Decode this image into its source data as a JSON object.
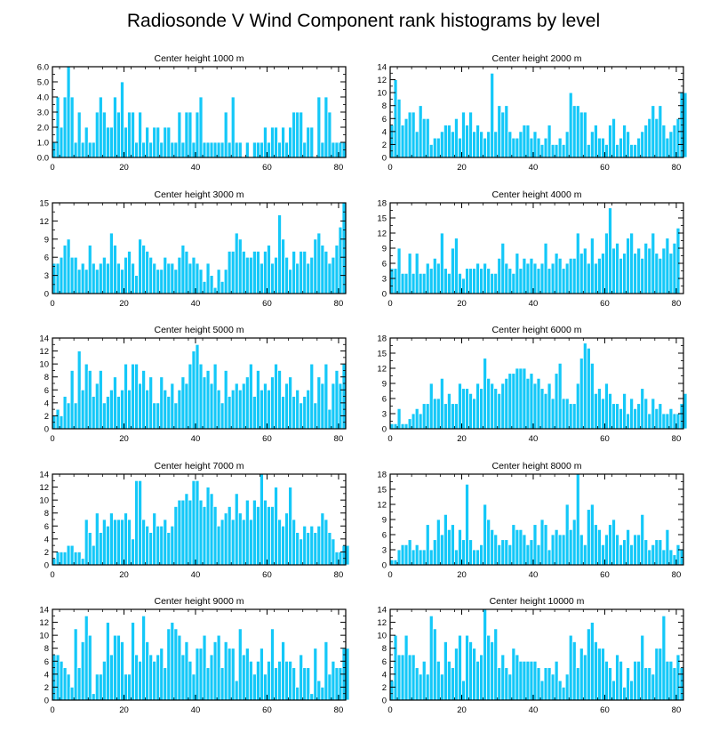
{
  "figure": {
    "title": "Radiosonde V Wind Component rank histograms by level",
    "bar_color": "#14c8f8",
    "bar_edge_color": "#ffffff",
    "axis_color": "#000000"
  },
  "chart_data": [
    {
      "type": "bar",
      "title": "Center height 1000 m",
      "x_start": 0,
      "xlim": [
        0,
        82
      ],
      "ylim": [
        0,
        6
      ],
      "xticks": [
        0,
        20,
        40,
        60,
        80
      ],
      "xtick_labels": [
        "0",
        "20",
        "40",
        "60",
        "80"
      ],
      "yticks": [
        0,
        1,
        2,
        3,
        4,
        5,
        6
      ],
      "ytick_labels": [
        "0.0",
        "1.0",
        "2.0",
        "3.0",
        "4.0",
        "5.0",
        "6.0"
      ],
      "values": [
        1,
        4,
        2,
        4,
        6,
        4,
        1,
        3,
        1,
        2,
        1,
        1,
        3,
        4,
        3,
        2,
        2,
        4,
        3,
        5,
        2,
        3,
        3,
        1,
        3,
        1,
        2,
        1,
        2,
        2,
        1,
        2,
        2,
        1,
        1,
        3,
        1,
        3,
        3,
        1,
        3,
        4,
        1,
        1,
        1,
        1,
        1,
        1,
        3,
        1,
        4,
        1,
        1,
        0,
        1,
        0,
        1,
        1,
        1,
        2,
        1,
        2,
        2,
        1,
        2,
        1,
        2,
        3,
        3,
        3,
        1,
        2,
        2,
        0,
        4,
        1,
        4,
        3,
        1,
        1,
        1,
        1
      ]
    },
    {
      "type": "bar",
      "title": "Center height 2000 m",
      "x_start": 0,
      "xlim": [
        0,
        82
      ],
      "ylim": [
        0,
        14
      ],
      "xticks": [
        0,
        20,
        40,
        60,
        80
      ],
      "xtick_labels": [
        "0",
        "20",
        "40",
        "60",
        "80"
      ],
      "yticks": [
        0,
        2,
        4,
        6,
        8,
        10,
        12,
        14
      ],
      "ytick_labels": [
        "0",
        "2",
        "4",
        "6",
        "8",
        "10",
        "12",
        "14"
      ],
      "values": [
        5,
        12,
        9,
        5,
        6,
        7,
        7,
        4,
        8,
        6,
        6,
        2,
        3,
        3,
        4,
        5,
        5,
        4,
        6,
        3,
        7,
        5,
        7,
        4,
        5,
        4,
        3,
        4,
        13,
        4,
        8,
        7,
        8,
        4,
        3,
        3,
        4,
        5,
        5,
        3,
        4,
        3,
        2,
        3,
        5,
        2,
        2,
        3,
        2,
        4,
        10,
        8,
        8,
        7,
        7,
        2,
        4,
        5,
        3,
        3,
        2,
        5,
        6,
        2,
        3,
        5,
        4,
        2,
        2,
        3,
        4,
        5,
        6,
        8,
        6,
        8,
        5,
        3,
        4,
        5,
        6,
        10,
        10
      ]
    },
    {
      "type": "bar",
      "title": "Center height 3000 m",
      "x_start": 0,
      "xlim": [
        0,
        82
      ],
      "ylim": [
        0,
        15
      ],
      "xticks": [
        0,
        20,
        40,
        60,
        80
      ],
      "xtick_labels": [
        "0",
        "20",
        "40",
        "60",
        "80"
      ],
      "yticks": [
        0,
        3,
        6,
        9,
        12,
        15
      ],
      "ytick_labels": [
        "0",
        "3",
        "6",
        "9",
        "12",
        "15"
      ],
      "values": [
        5,
        5,
        6,
        8,
        9,
        6,
        6,
        4,
        5,
        4,
        8,
        5,
        4,
        5,
        6,
        5,
        10,
        8,
        5,
        4,
        6,
        7,
        5,
        3,
        9,
        8,
        7,
        6,
        5,
        4,
        4,
        6,
        5,
        5,
        4,
        6,
        8,
        7,
        5,
        6,
        5,
        4,
        2,
        5,
        3,
        1,
        4,
        2,
        4,
        7,
        7,
        10,
        9,
        7,
        6,
        6,
        7,
        7,
        5,
        7,
        8,
        5,
        6,
        13,
        9,
        6,
        4,
        7,
        5,
        7,
        7,
        5,
        6,
        9,
        10,
        8,
        7,
        5,
        6,
        8,
        11,
        15
      ]
    },
    {
      "type": "bar",
      "title": "Center height 4000 m",
      "x_start": 0,
      "xlim": [
        0,
        82
      ],
      "ylim": [
        0,
        18
      ],
      "xticks": [
        0,
        20,
        40,
        60,
        80
      ],
      "xtick_labels": [
        "0",
        "20",
        "40",
        "60",
        "80"
      ],
      "yticks": [
        0,
        3,
        6,
        9,
        12,
        15,
        18
      ],
      "ytick_labels": [
        "0",
        "3",
        "6",
        "9",
        "12",
        "15",
        "18"
      ],
      "values": [
        5,
        5,
        9,
        4,
        4,
        8,
        4,
        8,
        4,
        4,
        6,
        5,
        7,
        6,
        12,
        5,
        4,
        9,
        11,
        4,
        3,
        5,
        5,
        5,
        6,
        5,
        6,
        5,
        4,
        4,
        7,
        10,
        6,
        5,
        4,
        8,
        5,
        7,
        6,
        7,
        6,
        5,
        6,
        10,
        5,
        6,
        8,
        7,
        5,
        6,
        7,
        7,
        12,
        8,
        9,
        6,
        11,
        6,
        7,
        8,
        12,
        17,
        9,
        10,
        7,
        8,
        11,
        12,
        8,
        9,
        7,
        10,
        9,
        12,
        8,
        7,
        9,
        11,
        8,
        10,
        13
      ]
    },
    {
      "type": "bar",
      "title": "Center height 5000 m",
      "x_start": 0,
      "xlim": [
        0,
        82
      ],
      "ylim": [
        0,
        14
      ],
      "xticks": [
        0,
        20,
        40,
        60,
        80
      ],
      "xtick_labels": [
        "0",
        "20",
        "40",
        "60",
        "80"
      ],
      "yticks": [
        0,
        2,
        4,
        6,
        8,
        10,
        12,
        14
      ],
      "ytick_labels": [
        "0",
        "2",
        "4",
        "6",
        "8",
        "10",
        "12",
        "14"
      ],
      "values": [
        2,
        3,
        2,
        5,
        4,
        9,
        4,
        12,
        6,
        10,
        9,
        5,
        7,
        9,
        4,
        5,
        6,
        8,
        5,
        6,
        10,
        6,
        10,
        10,
        7,
        9,
        6,
        8,
        4,
        4,
        8,
        6,
        5,
        7,
        4,
        6,
        8,
        7,
        10,
        12,
        13,
        10,
        8,
        9,
        7,
        10,
        6,
        4,
        9,
        5,
        6,
        7,
        6,
        7,
        8,
        10,
        5,
        9,
        6,
        7,
        6,
        8,
        10,
        9,
        5,
        7,
        8,
        5,
        6,
        4,
        5,
        6,
        10,
        4,
        8,
        7,
        10,
        3,
        7,
        9,
        7,
        10
      ]
    },
    {
      "type": "bar",
      "title": "Center height 6000 m",
      "x_start": 0,
      "xlim": [
        0,
        82
      ],
      "ylim": [
        0,
        18
      ],
      "xticks": [
        0,
        20,
        40,
        60,
        80
      ],
      "xtick_labels": [
        "0",
        "20",
        "40",
        "60",
        "80"
      ],
      "yticks": [
        0,
        3,
        6,
        9,
        12,
        15,
        18
      ],
      "ytick_labels": [
        "0",
        "3",
        "6",
        "9",
        "12",
        "15",
        "18"
      ],
      "values": [
        1,
        1,
        4,
        1,
        1,
        2,
        3,
        4,
        3,
        5,
        5,
        9,
        6,
        6,
        10,
        5,
        7,
        5,
        5,
        9,
        8,
        8,
        7,
        6,
        9,
        8,
        14,
        10,
        9,
        8,
        7,
        9,
        10,
        11,
        11,
        12,
        12,
        12,
        10,
        11,
        9,
        10,
        8,
        7,
        9,
        6,
        11,
        13,
        6,
        6,
        5,
        5,
        9,
        14,
        17,
        16,
        13,
        7,
        8,
        6,
        9,
        7,
        5,
        5,
        4,
        7,
        3,
        6,
        4,
        5,
        8,
        6,
        3,
        6,
        4,
        5,
        3,
        3,
        4,
        3,
        3,
        5,
        7
      ]
    },
    {
      "type": "bar",
      "title": "Center height 7000 m",
      "x_start": 0,
      "xlim": [
        0,
        82
      ],
      "ylim": [
        0,
        14
      ],
      "xticks": [
        0,
        20,
        40,
        60,
        80
      ],
      "xtick_labels": [
        "0",
        "20",
        "40",
        "60",
        "80"
      ],
      "yticks": [
        0,
        2,
        4,
        6,
        8,
        10,
        12,
        14
      ],
      "ytick_labels": [
        "0",
        "2",
        "4",
        "6",
        "8",
        "10",
        "12",
        "14"
      ],
      "values": [
        1,
        2,
        2,
        2,
        3,
        3,
        2,
        2,
        1,
        7,
        5,
        3,
        8,
        5,
        7,
        6,
        8,
        7,
        7,
        7,
        8,
        7,
        4,
        13,
        13,
        7,
        6,
        5,
        8,
        6,
        6,
        7,
        5,
        6,
        9,
        10,
        10,
        11,
        10,
        13,
        13,
        10,
        9,
        12,
        11,
        9,
        6,
        7,
        8,
        9,
        7,
        11,
        8,
        7,
        10,
        7,
        10,
        9,
        14,
        10,
        9,
        9,
        12,
        7,
        6,
        8,
        12,
        7,
        5,
        4,
        6,
        5,
        6,
        5,
        6,
        8,
        7,
        5,
        4,
        2,
        2,
        3,
        3
      ]
    },
    {
      "type": "bar",
      "title": "Center height 8000 m",
      "x_start": 0,
      "xlim": [
        0,
        82
      ],
      "ylim": [
        0,
        18
      ],
      "xticks": [
        0,
        20,
        40,
        60,
        80
      ],
      "xtick_labels": [
        "0",
        "20",
        "40",
        "60",
        "80"
      ],
      "yticks": [
        0,
        3,
        6,
        9,
        12,
        15,
        18
      ],
      "ytick_labels": [
        "0",
        "3",
        "6",
        "9",
        "12",
        "15",
        "18"
      ],
      "values": [
        1,
        1,
        3,
        4,
        4,
        5,
        3,
        4,
        3,
        3,
        8,
        3,
        5,
        9,
        6,
        10,
        7,
        8,
        3,
        7,
        5,
        16,
        5,
        3,
        3,
        4,
        12,
        9,
        7,
        6,
        4,
        5,
        5,
        4,
        8,
        7,
        7,
        6,
        4,
        5,
        8,
        4,
        9,
        8,
        3,
        6,
        7,
        6,
        6,
        12,
        7,
        9,
        18,
        6,
        4,
        11,
        12,
        8,
        7,
        4,
        6,
        8,
        9,
        6,
        4,
        5,
        7,
        4,
        6,
        6,
        10,
        5,
        3,
        4,
        5,
        5,
        3,
        7,
        3,
        2,
        4,
        3
      ]
    },
    {
      "type": "bar",
      "title": "Center height 9000 m",
      "x_start": 0,
      "xlim": [
        0,
        82
      ],
      "ylim": [
        0,
        14
      ],
      "xticks": [
        0,
        20,
        40,
        60,
        80
      ],
      "xtick_labels": [
        "0",
        "20",
        "40",
        "60",
        "80"
      ],
      "yticks": [
        0,
        2,
        4,
        6,
        8,
        10,
        12,
        14
      ],
      "ytick_labels": [
        "0",
        "2",
        "4",
        "6",
        "8",
        "10",
        "12",
        "14"
      ],
      "values": [
        7,
        7,
        6,
        5,
        4,
        2,
        11,
        5,
        9,
        13,
        10,
        1,
        4,
        4,
        6,
        12,
        7,
        10,
        10,
        9,
        4,
        4,
        12,
        7,
        6,
        13,
        9,
        7,
        6,
        7,
        8,
        5,
        11,
        12,
        11,
        10,
        7,
        9,
        6,
        4,
        8,
        8,
        10,
        5,
        7,
        9,
        10,
        5,
        9,
        8,
        8,
        3,
        11,
        7,
        8,
        6,
        4,
        6,
        8,
        4,
        6,
        11,
        5,
        6,
        9,
        6,
        6,
        5,
        2,
        7,
        5,
        5,
        1,
        8,
        3,
        2,
        9,
        4,
        6,
        5,
        5,
        8,
        8
      ]
    },
    {
      "type": "bar",
      "title": "Center height 10000 m",
      "x_start": 0,
      "xlim": [
        0,
        82
      ],
      "ylim": [
        0,
        14
      ],
      "xticks": [
        0,
        20,
        40,
        60,
        80
      ],
      "xtick_labels": [
        "0",
        "20",
        "40",
        "60",
        "80"
      ],
      "yticks": [
        0,
        2,
        4,
        6,
        8,
        10,
        12,
        14
      ],
      "ytick_labels": [
        "0",
        "2",
        "4",
        "6",
        "8",
        "10",
        "12",
        "14"
      ],
      "values": [
        3,
        10,
        7,
        7,
        10,
        7,
        7,
        5,
        4,
        6,
        4,
        13,
        11,
        6,
        4,
        9,
        6,
        5,
        8,
        10,
        3,
        10,
        9,
        8,
        6,
        7,
        14,
        10,
        9,
        11,
        5,
        7,
        5,
        4,
        8,
        7,
        6,
        6,
        6,
        6,
        6,
        5,
        3,
        5,
        5,
        4,
        6,
        3,
        2,
        4,
        10,
        9,
        5,
        8,
        7,
        11,
        12,
        9,
        8,
        8,
        6,
        5,
        3,
        7,
        6,
        2,
        5,
        3,
        6,
        6,
        10,
        5,
        5,
        4,
        8,
        8,
        13,
        6,
        6,
        5,
        7,
        5
      ]
    }
  ]
}
